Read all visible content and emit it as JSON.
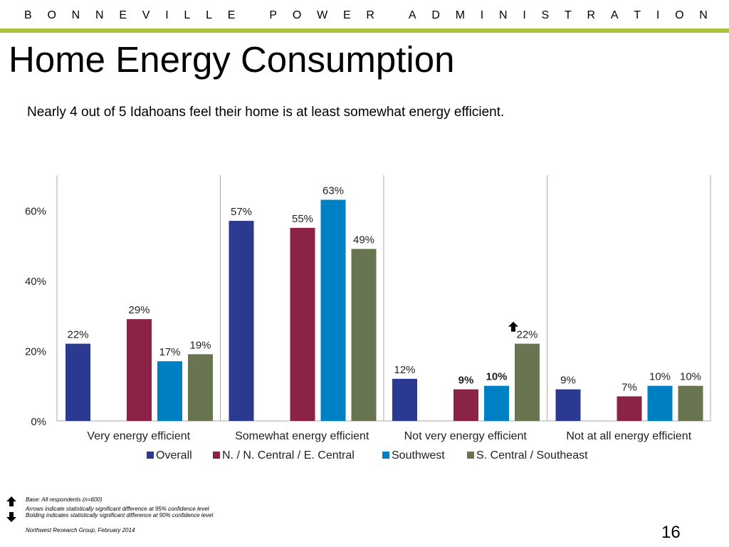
{
  "header": {
    "organization": "BONNEVILLE POWER ADMINISTRATION",
    "title": "Home Energy Consumption",
    "subtitle": "Nearly 4 out of 5 Idahoans feel their home is at least somewhat energy efficient."
  },
  "colors": {
    "accent_bar": "#a8c43b",
    "series": [
      "#2b3990",
      "#8b2346",
      "#0080c4",
      "#687550"
    ]
  },
  "chart_data": {
    "type": "bar",
    "categories": [
      "Very energy efficient",
      "Somewhat energy efficient",
      "Not very energy efficient",
      "Not at all energy efficient"
    ],
    "series": [
      {
        "name": "Overall",
        "values": [
          22,
          57,
          12,
          9
        ],
        "bold": [
          false,
          false,
          false,
          false
        ]
      },
      {
        "name": "N. / N. Central / E. Central",
        "values": [
          29,
          55,
          9,
          7
        ],
        "bold": [
          false,
          false,
          true,
          false
        ]
      },
      {
        "name": "Southwest",
        "values": [
          17,
          63,
          10,
          10
        ],
        "bold": [
          false,
          false,
          true,
          false
        ]
      },
      {
        "name": "S. Central / Southeast",
        "values": [
          19,
          49,
          22,
          10
        ],
        "bold": [
          false,
          false,
          false,
          false
        ]
      }
    ],
    "up_arrows": [
      {
        "category_index": 2,
        "series_index": 3
      }
    ],
    "yticks": [
      "0%",
      "20%",
      "40%",
      "60%"
    ],
    "ylim": [
      0,
      70
    ],
    "value_suffix": "%",
    "legend_position": "bottom"
  },
  "footnotes": {
    "base": "Base: All respondents (n=600)",
    "arrows": "Arrows indicate statistically significant difference at 95% confidence level",
    "bolding": "Bolding indicates statistically significant difference at 90% confidence level",
    "source": "Northwest Research Group, February 2014"
  },
  "page_number": "16"
}
